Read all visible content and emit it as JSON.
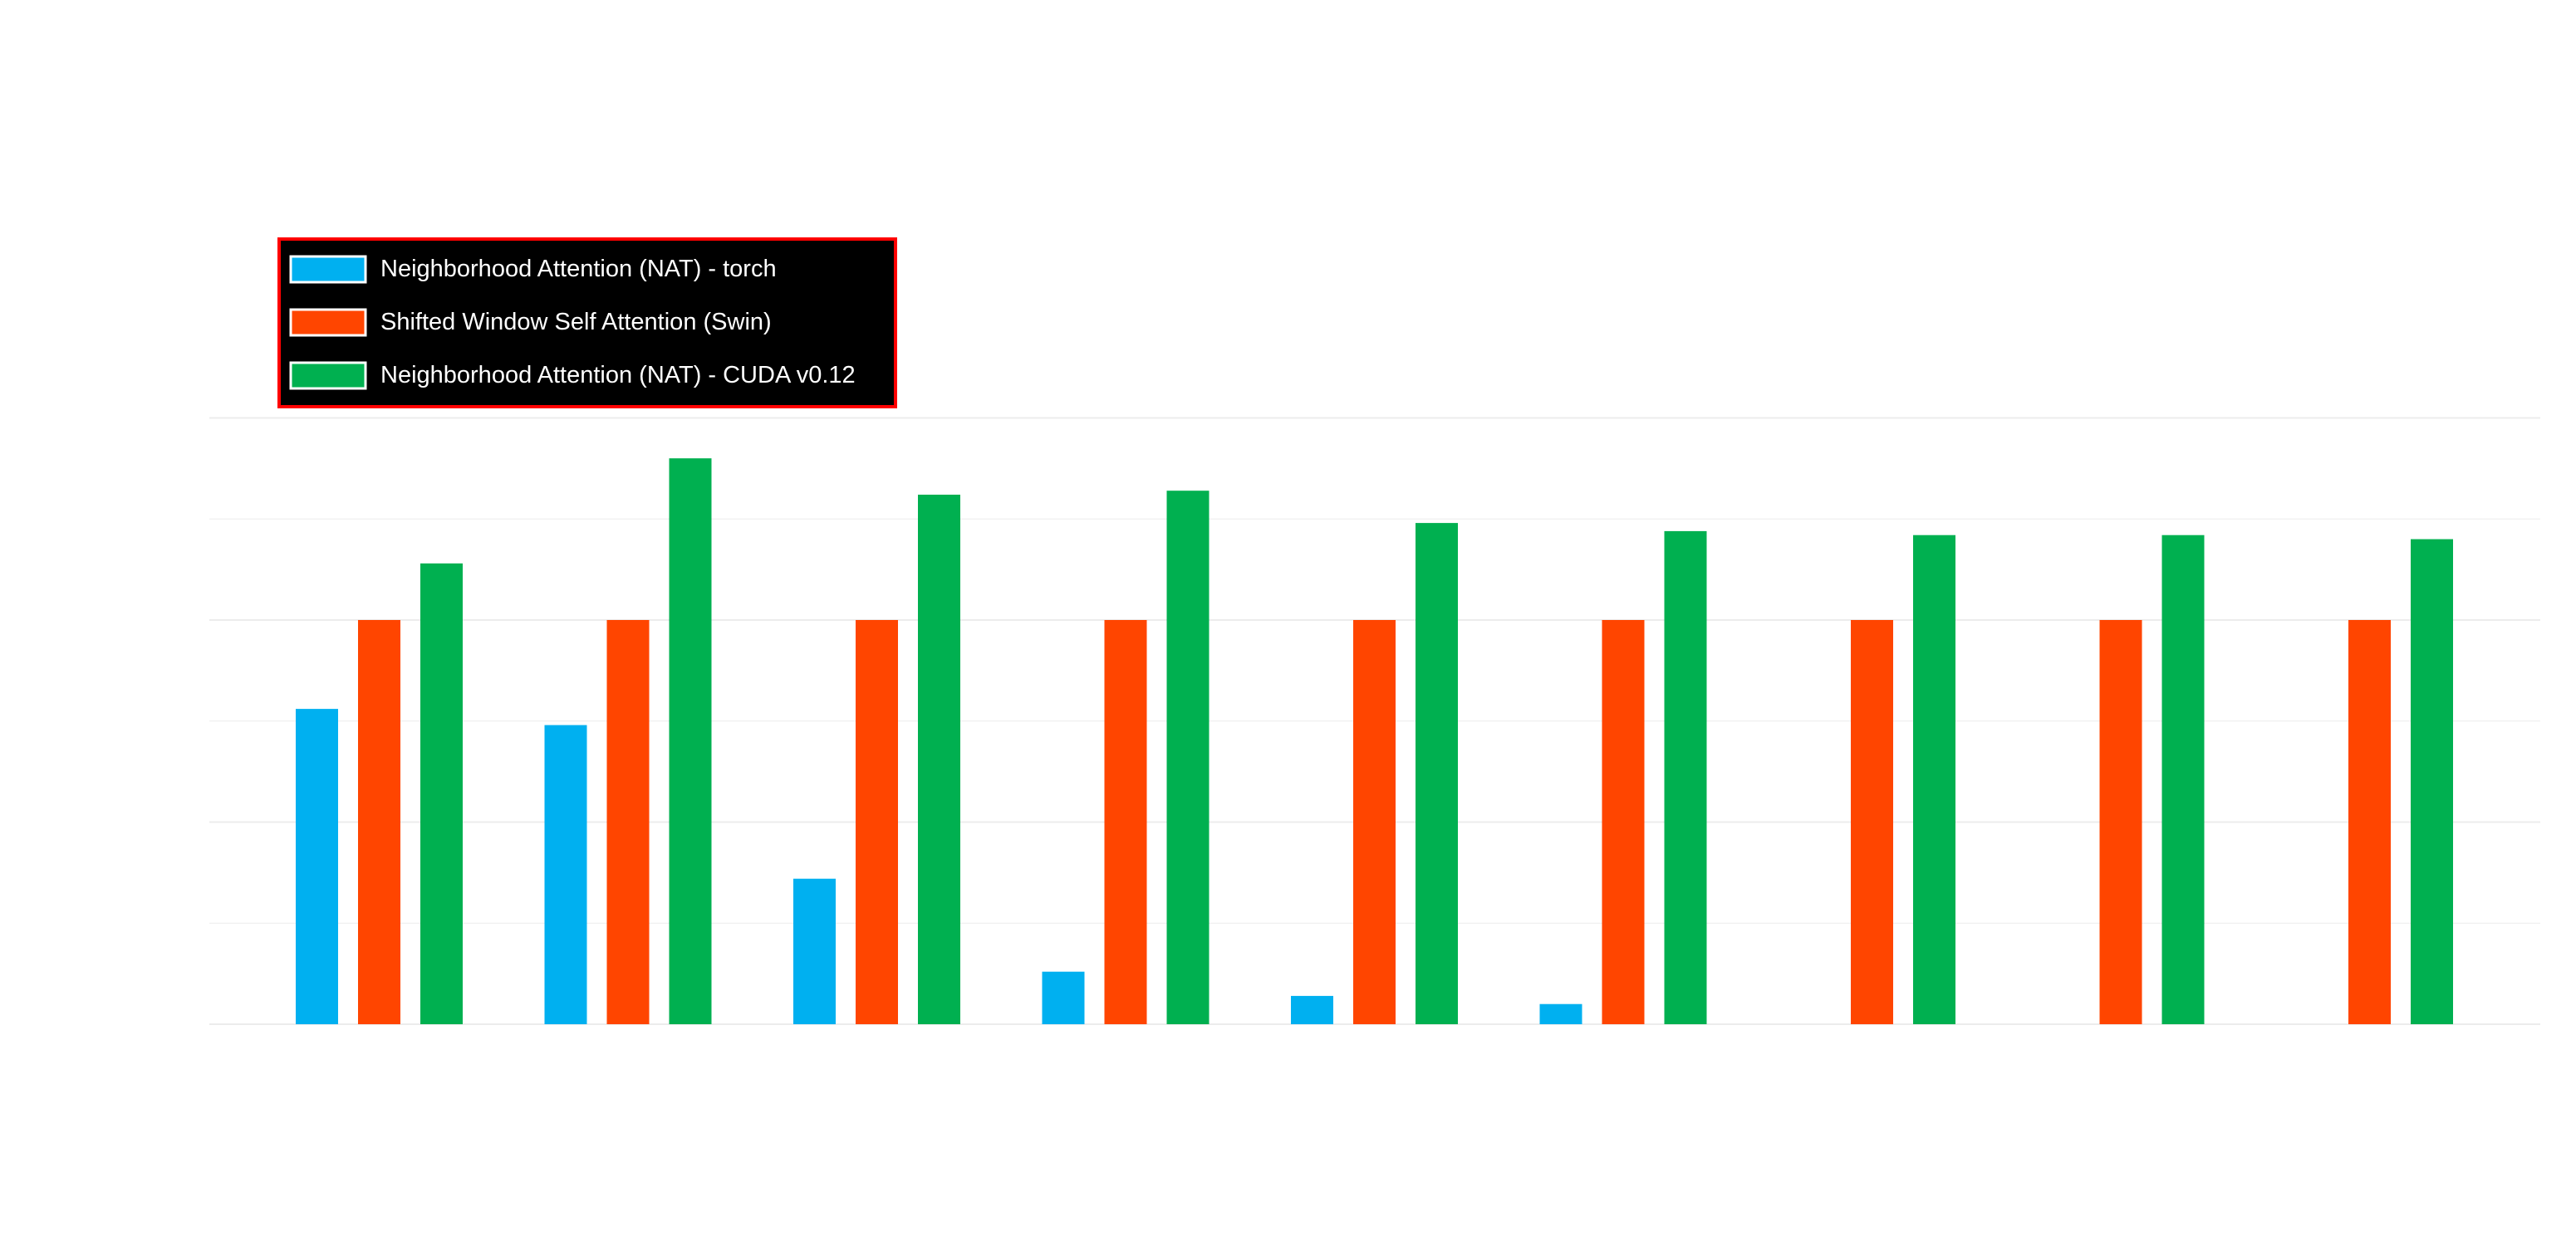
{
  "chart_data": {
    "type": "bar",
    "title": "",
    "xlabel": "",
    "ylabel": "",
    "categories": [
      "",
      "",
      "",
      "",
      "",
      "",
      "",
      "",
      ""
    ],
    "ylim": [
      0,
      1.5
    ],
    "grid": true,
    "legend_position": "top-left",
    "series": [
      {
        "name": "Neighborhood Attention (NAT) - torch",
        "color": "#00b0f0",
        "values": [
          0.78,
          0.74,
          0.36,
          0.13,
          0.07,
          0.05,
          null,
          null,
          null
        ]
      },
      {
        "name": "Shifted Window Self Attention (Swin)",
        "color": "#ff4500",
        "values": [
          1.0,
          1.0,
          1.0,
          1.0,
          1.0,
          1.0,
          1.0,
          1.0,
          1.0
        ]
      },
      {
        "name": "Neighborhood Attention (NAT) - CUDA v0.12",
        "color": "#00b050",
        "values": [
          1.14,
          1.4,
          1.31,
          1.32,
          1.24,
          1.22,
          1.21,
          1.21,
          1.2
        ]
      }
    ]
  }
}
